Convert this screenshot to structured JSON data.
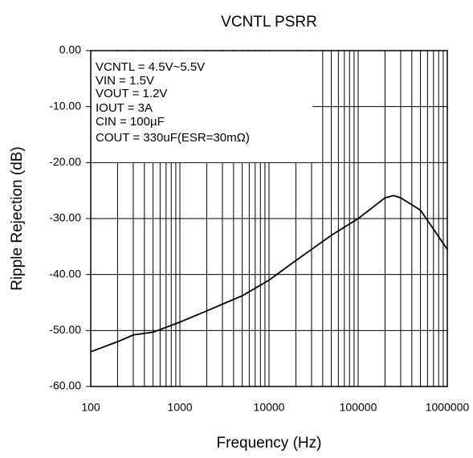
{
  "chart_data": {
    "type": "line",
    "title": "VCNTL PSRR",
    "xlabel": "Frequency (Hz)",
    "ylabel": "Ripple Rejection (dB)",
    "xscale": "log",
    "x": [
      100,
      200,
      300,
      500,
      1000,
      2000,
      3000,
      5000,
      10000,
      20000,
      50000,
      100000,
      200000,
      250000,
      300000,
      500000,
      1000000
    ],
    "values": [
      -53.8,
      -52,
      -50.8,
      -50.3,
      -48.5,
      -46.5,
      -45.3,
      -43.8,
      -41,
      -37.5,
      -33,
      -30,
      -26.3,
      -25.9,
      -26.3,
      -28.5,
      -35.5
    ],
    "color": "#000000",
    "xlim": [
      100,
      1000000
    ],
    "xticks": [
      100,
      1000,
      10000,
      100000,
      1000000
    ],
    "ylim": [
      -60,
      0
    ],
    "yticks": [
      {
        "value": 0,
        "label": "0.00"
      },
      {
        "value": -10,
        "label": "-10.00"
      },
      {
        "value": -20,
        "label": "-20.00"
      },
      {
        "value": -30,
        "label": "-30.00"
      },
      {
        "value": -40,
        "label": "-40.00"
      },
      {
        "value": -50,
        "label": "-50.00"
      },
      {
        "value": -60,
        "label": "-60.00"
      }
    ],
    "grid": true,
    "annotations": [
      "VCNTL = 4.5V~5.5V",
      "VIN = 1.5V",
      "VOUT = 1.2V",
      "IOUT = 3A",
      "CIN = 100µF",
      "COUT = 330uF(ESR=30mΩ)"
    ]
  }
}
